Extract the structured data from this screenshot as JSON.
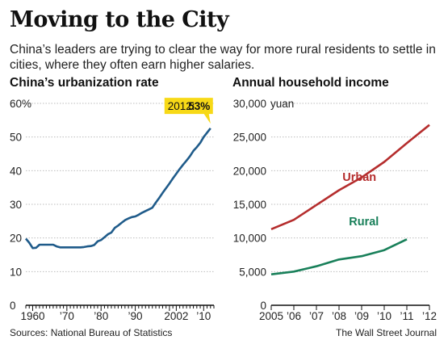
{
  "title": "Moving to the City",
  "subtitle": "China’s leaders are trying to clear the way for more rural residents to settle in cities, where they often earn higher salaries.",
  "colors": {
    "urbanization": "#1f5b8a",
    "urban": "#b52d2d",
    "rural": "#19805a",
    "callout": "#f7d917",
    "grid": "#bdbdbd",
    "axis": "#111111"
  },
  "chart_data": [
    {
      "type": "line",
      "title": "China’s urbanization rate",
      "ylabel": "",
      "xlabel": "",
      "ylim": [
        0,
        60
      ],
      "xlim": [
        1958,
        2013
      ],
      "y_ticks": [
        "0",
        "10",
        "20",
        "30",
        "40",
        "50",
        "60%"
      ],
      "y_tick_values": [
        0,
        10,
        20,
        30,
        40,
        50,
        60
      ],
      "x_ticks": [
        "1960",
        "’70",
        "’80",
        "’90",
        "2002",
        "’10"
      ],
      "x_tick_values": [
        1960,
        1970,
        1980,
        1990,
        2002,
        2010
      ],
      "annotation": {
        "label": "2012:",
        "value": "53%",
        "x": 2012,
        "y": 53
      },
      "grid": true,
      "series": [
        {
          "x": [
            1958,
            1959,
            1960,
            1961,
            1962,
            1963,
            1964,
            1965,
            1966,
            1967,
            1968,
            1969,
            1970,
            1971,
            1972,
            1973,
            1974,
            1975,
            1976,
            1977,
            1978,
            1979,
            1980,
            1981,
            1982,
            1983,
            1984,
            1985,
            1986,
            1987,
            1988,
            1989,
            1990,
            1991,
            1992,
            1993,
            1994,
            1995,
            1996,
            1997,
            1998,
            1999,
            2000,
            2001,
            2002,
            2003,
            2004,
            2005,
            2006,
            2007,
            2008,
            2009,
            2010,
            2011,
            2012
          ],
          "values": [
            19.8,
            18.6,
            17.0,
            17.1,
            18.0,
            18.0,
            18.0,
            18.0,
            18.0,
            17.5,
            17.2,
            17.2,
            17.2,
            17.2,
            17.2,
            17.2,
            17.2,
            17.3,
            17.5,
            17.6,
            17.9,
            19.0,
            19.4,
            20.2,
            21.1,
            21.6,
            23.0,
            23.7,
            24.5,
            25.3,
            25.8,
            26.2,
            26.4,
            26.9,
            27.5,
            28.0,
            28.5,
            29.0,
            30.5,
            31.9,
            33.4,
            34.8,
            36.2,
            37.7,
            39.1,
            40.5,
            41.8,
            43.0,
            44.3,
            45.9,
            47.0,
            48.3,
            50.0,
            51.3,
            52.6
          ]
        }
      ]
    },
    {
      "type": "line",
      "title": "Annual household income",
      "ylabel": "",
      "xlabel": "",
      "ylim": [
        0,
        30000
      ],
      "y_ticks": [
        "0",
        "5,000",
        "10,000",
        "15,000",
        "20,000",
        "25,000",
        "30,000"
      ],
      "y_tick_values": [
        0,
        5000,
        10000,
        15000,
        20000,
        25000,
        30000
      ],
      "y_unit": "yuan",
      "categories": [
        "2005",
        "’06",
        "’07",
        "’08",
        "’09",
        "’10",
        "’11",
        "’12"
      ],
      "x": [
        2005,
        2006,
        2007,
        2008,
        2009,
        2010,
        2011,
        2012
      ],
      "grid": true,
      "series": [
        {
          "name": "Urban",
          "values": [
            11300,
            12700,
            14900,
            17100,
            19000,
            21300,
            24100,
            26800
          ]
        },
        {
          "name": "Rural",
          "values": [
            4600,
            5000,
            5800,
            6800,
            7300,
            8200,
            9800,
            null
          ]
        }
      ]
    }
  ],
  "footer": {
    "source": "Sources: National Bureau of Statistics",
    "credit": "The Wall Street Journal"
  }
}
